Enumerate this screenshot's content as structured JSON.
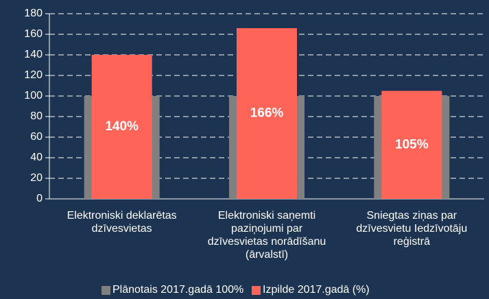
{
  "chart_data": {
    "type": "bar",
    "categories": [
      "Elektroniski deklarētas dzīvesvietas",
      "Elektroniski saņemti paziņojumi par dzīvesvietas norādīšanu (ārvalstī)",
      "Sniegtas ziņas par dzīvesvietu Iedzīvotāju reģistrā"
    ],
    "series": [
      {
        "name": "Plānotais 2017.gadā 100%",
        "color": "#808080",
        "values": [
          100,
          100,
          100
        ]
      },
      {
        "name": "Izpilde 2017.gadā (%)",
        "color": "#ff6459",
        "values": [
          140,
          166,
          105
        ],
        "value_labels": [
          "140%",
          "166%",
          "105%"
        ]
      }
    ],
    "ylim": [
      0,
      180
    ],
    "yticks": [
      0,
      20,
      40,
      60,
      80,
      100,
      120,
      140,
      160,
      180
    ],
    "grid": true,
    "legend": "bottom"
  }
}
